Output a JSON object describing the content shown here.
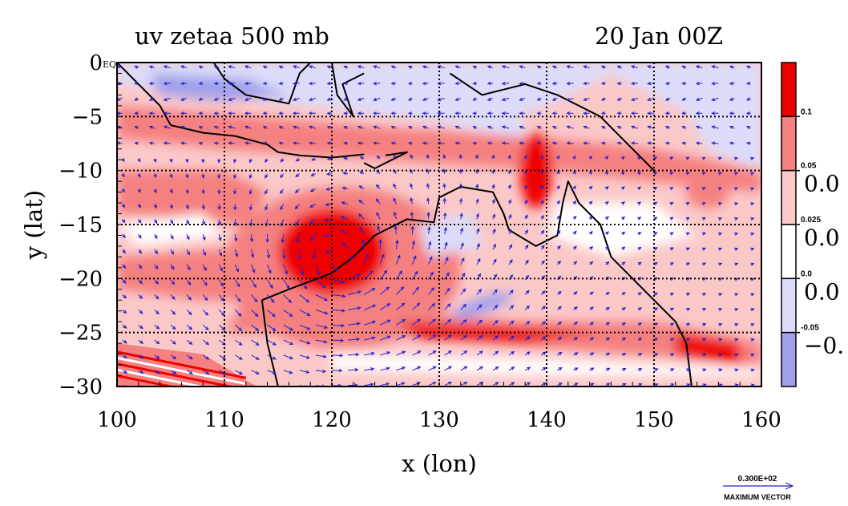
{
  "chart_data": {
    "type": "heatmap",
    "title": "uv zetaa 500 mb",
    "time_label": "20 Jan 00Z",
    "xlabel": "x (lon)",
    "ylabel": "y (lat)",
    "xlim": [
      100,
      160
    ],
    "ylim": [
      -30,
      0
    ],
    "x_ticks": [
      {
        "value": 100,
        "label": "100"
      },
      {
        "value": 110,
        "label": "110"
      },
      {
        "value": 120,
        "label": "120"
      },
      {
        "value": 130,
        "label": "130"
      },
      {
        "value": 140,
        "label": "140"
      },
      {
        "value": 150,
        "label": "150"
      },
      {
        "value": 160,
        "label": "160"
      }
    ],
    "y_ticks": [
      {
        "value": 0,
        "label": "0"
      },
      {
        "value": -5,
        "label": "−5"
      },
      {
        "value": -10,
        "label": "−10"
      },
      {
        "value": -15,
        "label": "−15"
      },
      {
        "value": -20,
        "label": "−20"
      },
      {
        "value": -25,
        "label": "−25"
      },
      {
        "value": -30,
        "label": "−30"
      }
    ],
    "origin_tag": "EQ",
    "grid": true,
    "colorbar": {
      "levels": [
        {
          "label": "0.1",
          "side": "",
          "color": "#ee0000"
        },
        {
          "label": "0.05",
          "side": "0.0",
          "color": "#f58080"
        },
        {
          "label": "0.025",
          "side": "0.0",
          "color": "#fbc8c8"
        },
        {
          "label": "0.0",
          "side": "0.0",
          "color": "#ffffff"
        },
        {
          "label": "-0.05",
          "side": "−0.",
          "color": "#dcdcfa"
        },
        {
          "label": "",
          "side": "",
          "color": "#a0a0ec"
        }
      ]
    },
    "vector_legend": {
      "value": "0.300E+02",
      "label": "MAXIMUM VECTOR",
      "color": "#2222cc"
    },
    "vortex_center": {
      "lon": 120.5,
      "lat": -18.5
    },
    "colors": {
      "strong_pos": "#ee0000",
      "mid_pos": "#f58080",
      "weak_pos": "#fbc8c8",
      "neutral": "#ffffff",
      "weak_neg": "#dcdcfa",
      "strong_neg": "#a0a0ec",
      "vector": "#2222cc",
      "coast": "#000000"
    }
  }
}
